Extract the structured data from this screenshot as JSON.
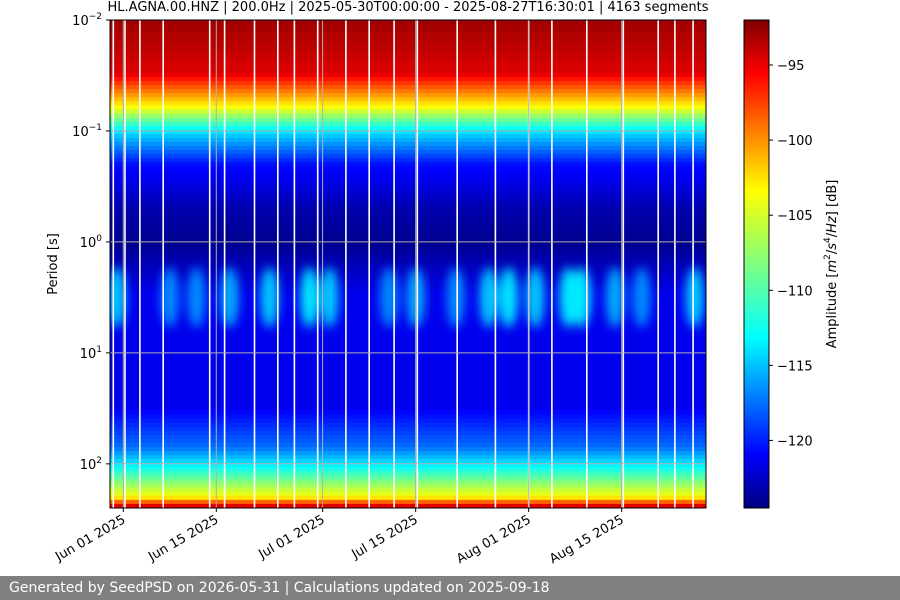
{
  "chart_data": {
    "type": "heatmap",
    "title": "HL.AGNA.00.HNZ | 200.0Hz | 2025-05-30T00:00:00 - 2025-08-27T16:30:01 | 4163 segments",
    "ylabel": "Period [s]",
    "y_scale": "log",
    "y_inverted": true,
    "ylim": [
      0.01,
      250
    ],
    "y_ticks": [
      0.01,
      0.1,
      1,
      10,
      100
    ],
    "y_tick_labels": [
      {
        "base": "10",
        "exp": "−2"
      },
      {
        "base": "10",
        "exp": "−1"
      },
      {
        "base": "10",
        "exp": "0"
      },
      {
        "base": "10",
        "exp": "1"
      },
      {
        "base": "10",
        "exp": "2"
      }
    ],
    "xlim": [
      "2025-05-30",
      "2025-08-27T16:30:01"
    ],
    "x_ticks": [
      "2025-06-01",
      "2025-06-15",
      "2025-07-01",
      "2025-07-15",
      "2025-08-01",
      "2025-08-15"
    ],
    "x_tick_labels": [
      "Jun 01 2025",
      "Jun 15 2025",
      "Jul 01 2025",
      "Jul 15 2025",
      "Aug 01 2025",
      "Aug 15 2025"
    ],
    "grid": true,
    "colormap": "jet",
    "colorbar": {
      "label_parts": [
        "Amplitude [",
        "m",
        "2",
        "/",
        "s",
        "4",
        "/",
        "Hz",
        "] [dB]"
      ],
      "range": [
        -124.5,
        -92
      ],
      "ticks": [
        -95,
        -100,
        -105,
        -110,
        -115,
        -120
      ],
      "tick_labels": [
        "−95",
        "−100",
        "−105",
        "−110",
        "−115",
        "−120"
      ]
    },
    "mean_profile": [
      {
        "period": 0.01,
        "db": -93
      },
      {
        "period": 0.03,
        "db": -95
      },
      {
        "period": 0.06,
        "db": -104
      },
      {
        "period": 0.1,
        "db": -113
      },
      {
        "period": 0.2,
        "db": -120
      },
      {
        "period": 0.5,
        "db": -123
      },
      {
        "period": 1,
        "db": -124
      },
      {
        "period": 3,
        "db": -121
      },
      {
        "period": 10,
        "db": -121
      },
      {
        "period": 30,
        "db": -121
      },
      {
        "period": 70,
        "db": -117
      },
      {
        "period": 100,
        "db": -113
      },
      {
        "period": 200,
        "db": -104
      },
      {
        "period": 250,
        "db": -93
      }
    ],
    "secondary_microseism_band": {
      "period_min": 2,
      "period_max": 5,
      "peak_db": -115
    },
    "bursts": [
      {
        "date": "2025-05-31",
        "db": -114
      },
      {
        "date": "2025-06-08",
        "db": -116
      },
      {
        "date": "2025-06-12",
        "db": -116
      },
      {
        "date": "2025-06-17",
        "db": -115
      },
      {
        "date": "2025-06-23",
        "db": -114
      },
      {
        "date": "2025-06-29",
        "db": -113
      },
      {
        "date": "2025-07-02",
        "db": -114
      },
      {
        "date": "2025-07-11",
        "db": -116
      },
      {
        "date": "2025-07-15",
        "db": -115
      },
      {
        "date": "2025-07-21",
        "db": -116
      },
      {
        "date": "2025-07-26",
        "db": -114
      },
      {
        "date": "2025-07-29",
        "db": -113
      },
      {
        "date": "2025-08-02",
        "db": -114
      },
      {
        "date": "2025-08-07",
        "db": -113
      },
      {
        "date": "2025-08-09",
        "db": -113
      },
      {
        "date": "2025-08-14",
        "db": -115
      },
      {
        "date": "2025-08-18",
        "db": -116
      },
      {
        "date": "2025-08-26",
        "db": -114
      }
    ],
    "data_gaps": [
      "2025-05-30T12:00:00",
      "2025-06-01T06:00:00",
      "2025-06-03T12:00:00",
      "2025-06-07T00:00:00",
      "2025-06-14T00:00:00",
      "2025-06-16T06:00:00",
      "2025-06-20T18:00:00",
      "2025-06-24T06:00:00",
      "2025-06-26T18:00:00",
      "2025-06-30T06:00:00",
      "2025-07-04T12:00:00",
      "2025-07-08T00:00:00",
      "2025-07-11T18:00:00",
      "2025-07-15T06:00:00",
      "2025-07-21T06:00:00",
      "2025-07-27T00:00:00",
      "2025-08-01T00:00:00",
      "2025-08-04T12:00:00",
      "2025-08-09T18:00:00",
      "2025-08-15T06:00:00",
      "2025-08-20T12:00:00",
      "2025-08-23T00:00:00",
      "2025-08-25T18:00:00"
    ]
  },
  "footer": {
    "text": "Generated by SeedPSD on 2026-05-31 | Calculations updated on 2025-09-18"
  }
}
